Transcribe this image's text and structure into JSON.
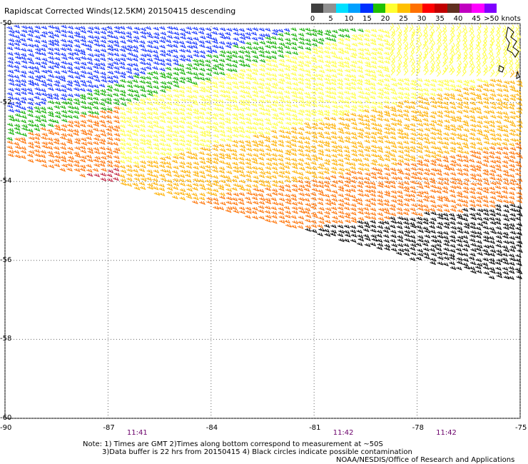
{
  "title": "Rapidscat Corrected Winds(12.5KM) 20150415 descending",
  "legend": {
    "labels": [
      "0",
      "5",
      "10",
      "15",
      "20",
      "25",
      "30",
      "35",
      "40",
      "45",
      ">50 knots"
    ],
    "colors": [
      "#404040",
      "#909090",
      "#00e0ff",
      "#00a0ff",
      "#0030ff",
      "#20c000",
      "#ffff30",
      "#ffc000",
      "#ff7000",
      "#ff0000",
      "#c00000",
      "#603020",
      "#c000c0",
      "#ff00ff",
      "#8000ff"
    ]
  },
  "axes": {
    "x_ticks": [
      "-90",
      "-87",
      "-84",
      "-81",
      "-78",
      "-75"
    ],
    "y_ticks": [
      "-50",
      "-52",
      "-54",
      "-56",
      "-58",
      "-60"
    ],
    "lon_range": [
      -90,
      -75
    ],
    "lat_range": [
      -60,
      -50
    ]
  },
  "times": [
    {
      "label": "11:41",
      "lon": -86.2
    },
    {
      "label": "11:42",
      "lon": -80.2
    },
    {
      "label": "11:42",
      "lon": -77.2
    }
  ],
  "notes": {
    "line1": "Note: 1) Times are GMT 2)Times along bottom correspond to measurement at ~50S",
    "line2": "3)Data buffer is 22 hrs from 20150415 4) Black circles indicate possible contamination",
    "credit": "NOAA/NESDIS/Office of Research and Applications"
  }
}
